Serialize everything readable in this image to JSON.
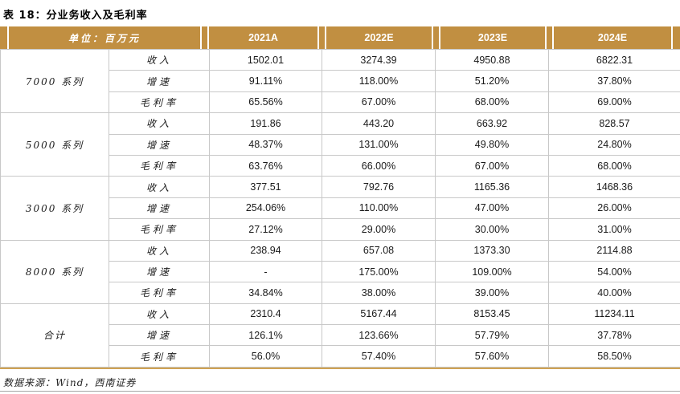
{
  "title": "表 18：分业务收入及毛利率",
  "table": {
    "unit_label": "单位：百万元",
    "year_headers": [
      "2021A",
      "2022E",
      "2023E",
      "2024E"
    ],
    "metric_labels": [
      "收入",
      "增速",
      "毛利率"
    ],
    "groups": [
      {
        "name": "7000 系列",
        "rows": [
          [
            "1502.01",
            "3274.39",
            "4950.88",
            "6822.31"
          ],
          [
            "91.11%",
            "118.00%",
            "51.20%",
            "37.80%"
          ],
          [
            "65.56%",
            "67.00%",
            "68.00%",
            "69.00%"
          ]
        ]
      },
      {
        "name": "5000 系列",
        "rows": [
          [
            "191.86",
            "443.20",
            "663.92",
            "828.57"
          ],
          [
            "48.37%",
            "131.00%",
            "49.80%",
            "24.80%"
          ],
          [
            "63.76%",
            "66.00%",
            "67.00%",
            "68.00%"
          ]
        ]
      },
      {
        "name": "3000 系列",
        "rows": [
          [
            "377.51",
            "792.76",
            "1165.36",
            "1468.36"
          ],
          [
            "254.06%",
            "110.00%",
            "47.00%",
            "26.00%"
          ],
          [
            "27.12%",
            "29.00%",
            "30.00%",
            "31.00%"
          ]
        ]
      },
      {
        "name": "8000 系列",
        "rows": [
          [
            "238.94",
            "657.08",
            "1373.30",
            "2114.88"
          ],
          [
            "-",
            "175.00%",
            "109.00%",
            "54.00%"
          ],
          [
            "34.84%",
            "38.00%",
            "39.00%",
            "40.00%"
          ]
        ]
      },
      {
        "name": "合计",
        "rows": [
          [
            "2310.4",
            "5167.44",
            "8153.45",
            "11234.11"
          ],
          [
            "126.1%",
            "123.66%",
            "57.79%",
            "37.78%"
          ],
          [
            "56.0%",
            "57.40%",
            "57.60%",
            "58.50%"
          ]
        ]
      }
    ]
  },
  "footer": "数据来源：Wind，西南证券",
  "colors": {
    "header_gold": "#C18F41",
    "table_bottom_rule": "#CFA253",
    "cell_border": "#C8C8C8"
  }
}
